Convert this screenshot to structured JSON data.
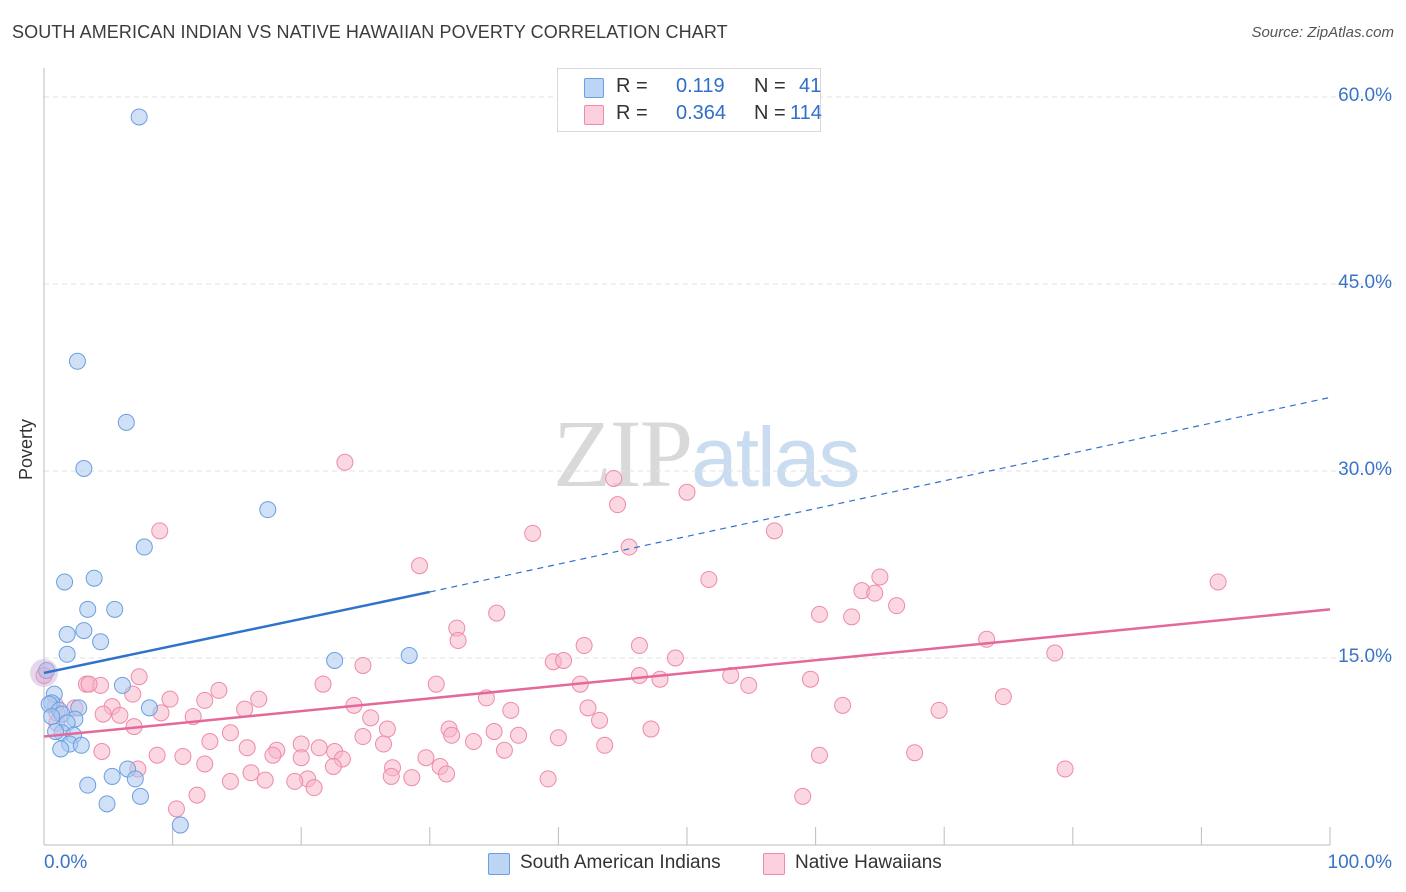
{
  "title": "SOUTH AMERICAN INDIAN VS NATIVE HAWAIIAN POVERTY CORRELATION CHART",
  "source": "Source: ZipAtlas.com",
  "watermark": {
    "zip": "ZIP",
    "atlas": "atlas"
  },
  "legend": {
    "rows": [
      {
        "r_label": "R =",
        "r_value": "0.119",
        "n_label": "N =",
        "n_value": "41",
        "color": "#a9c8f0"
      },
      {
        "r_label": "R =",
        "r_value": "0.364",
        "n_label": "N =",
        "n_value": "114",
        "color": "#f7b6cb"
      }
    ]
  },
  "chart_data": {
    "type": "scatter",
    "title": "SOUTH AMERICAN INDIAN VS NATIVE HAWAIIAN POVERTY CORRELATION CHART",
    "xlabel": "",
    "ylabel": "Poverty",
    "xlim": [
      0,
      100
    ],
    "ylim": [
      0,
      60
    ],
    "x_tick_labels": [
      "0.0%",
      "100.0%"
    ],
    "y_ticks": [
      15,
      30,
      45,
      60
    ],
    "y_tick_labels": [
      "15.0%",
      "30.0%",
      "45.0%",
      "60.0%"
    ],
    "grid": true,
    "legend_position": "top-center",
    "series": [
      {
        "name": "South American Indians",
        "color": "#6a9fe0",
        "fill": "#a9c8f0",
        "trend": {
          "x0": 0,
          "y0": 13.8,
          "x1": 30,
          "y1": 20.3,
          "dashed_to_x": 100,
          "dashed_to_y": 35.9,
          "color": "#2f72cc"
        },
        "points": [
          [
            7.4,
            58.4
          ],
          [
            2.6,
            38.8
          ],
          [
            6.4,
            33.9
          ],
          [
            3.1,
            30.2
          ],
          [
            17.4,
            26.9
          ],
          [
            7.8,
            23.9
          ],
          [
            3.9,
            21.4
          ],
          [
            1.6,
            21.1
          ],
          [
            3.4,
            18.9
          ],
          [
            5.5,
            18.9
          ],
          [
            3.1,
            17.2
          ],
          [
            1.8,
            16.9
          ],
          [
            4.4,
            16.3
          ],
          [
            1.8,
            15.3
          ],
          [
            22.6,
            14.8
          ],
          [
            28.4,
            15.2
          ],
          [
            0.2,
            14.0
          ],
          [
            6.1,
            12.8
          ],
          [
            0.8,
            12.1
          ],
          [
            0.6,
            11.4
          ],
          [
            8.2,
            11.0
          ],
          [
            0.4,
            11.3
          ],
          [
            2.7,
            11.0
          ],
          [
            1.2,
            10.8
          ],
          [
            1.4,
            10.5
          ],
          [
            0.6,
            10.3
          ],
          [
            2.4,
            10.1
          ],
          [
            1.8,
            9.8
          ],
          [
            1.4,
            9.0
          ],
          [
            2.3,
            8.8
          ],
          [
            0.9,
            9.1
          ],
          [
            2.0,
            8.1
          ],
          [
            2.9,
            8.0
          ],
          [
            1.3,
            7.7
          ],
          [
            6.5,
            6.1
          ],
          [
            5.3,
            5.5
          ],
          [
            7.1,
            5.3
          ],
          [
            3.4,
            4.8
          ],
          [
            4.9,
            3.3
          ],
          [
            7.5,
            3.9
          ],
          [
            10.6,
            1.6
          ]
        ]
      },
      {
        "name": "Native Hawaiians",
        "color": "#ee8aaa",
        "fill": "#f7b6cb",
        "trend": {
          "x0": 0,
          "y0": 8.7,
          "x1": 100,
          "y1": 18.9,
          "color": "#e5689a"
        },
        "points": [
          [
            23.4,
            30.7
          ],
          [
            44.3,
            29.4
          ],
          [
            50.0,
            28.3
          ],
          [
            44.6,
            27.3
          ],
          [
            9.0,
            25.2
          ],
          [
            38.0,
            25.0
          ],
          [
            56.8,
            25.2
          ],
          [
            45.5,
            23.9
          ],
          [
            29.2,
            22.4
          ],
          [
            51.7,
            21.3
          ],
          [
            65.0,
            21.5
          ],
          [
            91.3,
            21.1
          ],
          [
            63.6,
            20.4
          ],
          [
            64.6,
            20.2
          ],
          [
            66.3,
            19.2
          ],
          [
            35.2,
            18.6
          ],
          [
            60.3,
            18.5
          ],
          [
            62.8,
            18.3
          ],
          [
            32.1,
            17.4
          ],
          [
            32.2,
            16.4
          ],
          [
            73.3,
            16.5
          ],
          [
            42.0,
            16.0
          ],
          [
            46.3,
            16.0
          ],
          [
            78.6,
            15.4
          ],
          [
            49.1,
            15.0
          ],
          [
            39.6,
            14.7
          ],
          [
            40.4,
            14.8
          ],
          [
            24.8,
            14.4
          ],
          [
            7.4,
            13.5
          ],
          [
            46.3,
            13.6
          ],
          [
            53.4,
            13.6
          ],
          [
            47.9,
            13.3
          ],
          [
            21.7,
            12.9
          ],
          [
            30.5,
            12.9
          ],
          [
            59.6,
            13.3
          ],
          [
            3.3,
            12.9
          ],
          [
            4.4,
            12.8
          ],
          [
            41.7,
            12.9
          ],
          [
            54.8,
            12.8
          ],
          [
            13.6,
            12.4
          ],
          [
            6.9,
            12.1
          ],
          [
            34.4,
            11.8
          ],
          [
            74.6,
            11.9
          ],
          [
            9.8,
            11.7
          ],
          [
            12.5,
            11.6
          ],
          [
            16.7,
            11.7
          ],
          [
            62.1,
            11.2
          ],
          [
            24.1,
            11.2
          ],
          [
            0.9,
            11.2
          ],
          [
            2.4,
            11.0
          ],
          [
            5.3,
            11.1
          ],
          [
            15.6,
            10.9
          ],
          [
            9.1,
            10.6
          ],
          [
            36.3,
            10.8
          ],
          [
            42.3,
            11.0
          ],
          [
            69.6,
            10.8
          ],
          [
            4.6,
            10.5
          ],
          [
            5.9,
            10.4
          ],
          [
            11.6,
            10.3
          ],
          [
            25.4,
            10.2
          ],
          [
            43.2,
            10.0
          ],
          [
            1.0,
            9.8
          ],
          [
            7.0,
            9.5
          ],
          [
            26.7,
            9.3
          ],
          [
            31.5,
            9.3
          ],
          [
            35.0,
            9.1
          ],
          [
            47.2,
            9.3
          ],
          [
            14.5,
            9.0
          ],
          [
            31.7,
            8.8
          ],
          [
            36.9,
            8.8
          ],
          [
            24.8,
            8.7
          ],
          [
            40.0,
            8.6
          ],
          [
            12.9,
            8.3
          ],
          [
            26.4,
            8.1
          ],
          [
            20.0,
            8.1
          ],
          [
            33.4,
            8.3
          ],
          [
            43.6,
            8.0
          ],
          [
            15.8,
            7.8
          ],
          [
            21.4,
            7.8
          ],
          [
            35.8,
            7.6
          ],
          [
            18.1,
            7.6
          ],
          [
            22.6,
            7.5
          ],
          [
            4.5,
            7.5
          ],
          [
            8.8,
            7.2
          ],
          [
            10.8,
            7.1
          ],
          [
            20.0,
            7.0
          ],
          [
            23.2,
            6.9
          ],
          [
            29.7,
            7.0
          ],
          [
            17.8,
            7.2
          ],
          [
            60.3,
            7.2
          ],
          [
            67.7,
            7.4
          ],
          [
            12.5,
            6.5
          ],
          [
            22.5,
            6.3
          ],
          [
            27.1,
            6.2
          ],
          [
            7.3,
            6.1
          ],
          [
            16.1,
            5.8
          ],
          [
            30.8,
            6.3
          ],
          [
            17.2,
            5.2
          ],
          [
            20.5,
            5.3
          ],
          [
            14.5,
            5.1
          ],
          [
            19.5,
            5.1
          ],
          [
            28.6,
            5.4
          ],
          [
            39.2,
            5.3
          ],
          [
            31.3,
            5.7
          ],
          [
            27.0,
            5.5
          ],
          [
            21.0,
            4.6
          ],
          [
            11.9,
            4.0
          ],
          [
            59.0,
            3.9
          ],
          [
            79.4,
            6.1
          ],
          [
            10.3,
            2.9
          ],
          [
            3.5,
            12.9
          ],
          [
            1.0,
            10.6
          ],
          [
            0.0,
            13.6
          ]
        ]
      }
    ]
  }
}
